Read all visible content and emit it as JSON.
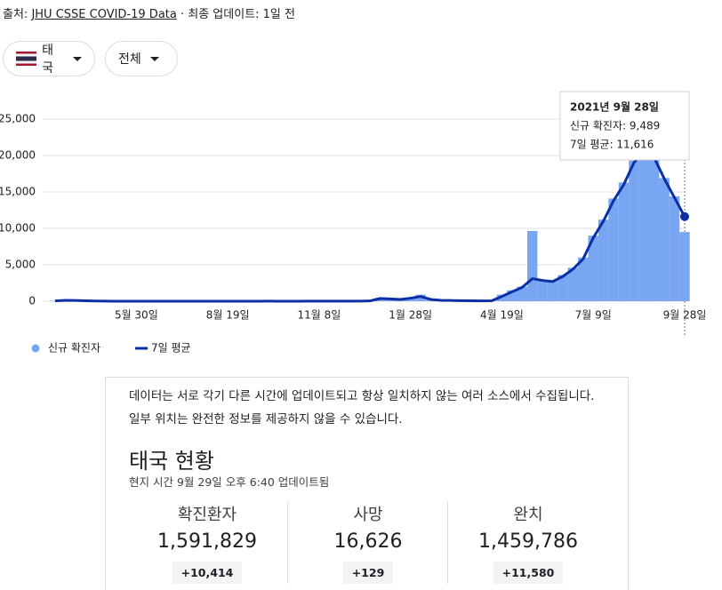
{
  "header": {
    "source_prefix": "출처: ",
    "source_link": "JHU CSSE COVID-19 Data",
    "updated": " · 최종 업데이트: 1일 전"
  },
  "filters": [
    "태국",
    "전체"
  ],
  "chart_data": {
    "type": "bar_line",
    "categories": [
      null,
      null,
      null,
      null,
      null,
      null,
      null,
      null,
      "5월 30일",
      null,
      null,
      null,
      null,
      null,
      null,
      null,
      null,
      "8월 19일",
      null,
      null,
      null,
      null,
      null,
      null,
      null,
      null,
      "11월 8일",
      null,
      null,
      null,
      null,
      null,
      null,
      null,
      null,
      "1월 28일",
      null,
      null,
      null,
      null,
      null,
      null,
      null,
      null,
      "4월 19일",
      null,
      null,
      null,
      null,
      null,
      null,
      null,
      null,
      "7월 9일",
      null,
      null,
      null,
      null,
      null,
      null,
      null,
      null,
      "9월 28일"
    ],
    "series": [
      {
        "name": "신규 확진자",
        "color": "#78a6f2",
        "mark": "bar",
        "values": [
          60,
          140,
          120,
          60,
          20,
          10,
          5,
          5,
          5,
          5,
          5,
          5,
          5,
          5,
          5,
          5,
          5,
          5,
          5,
          5,
          5,
          10,
          5,
          5,
          5,
          10,
          10,
          10,
          10,
          20,
          20,
          60,
          450,
          300,
          250,
          500,
          900,
          200,
          100,
          100,
          80,
          60,
          50,
          60,
          900,
          1500,
          2000,
          9635,
          2900,
          2800,
          3600,
          4600,
          6000,
          9000,
          11200,
          14100,
          16300,
          19300,
          20900,
          19800,
          16900,
          14400,
          9489
        ]
      },
      {
        "name": "7일 평균",
        "color": "#0b2fa5",
        "mark": "line",
        "values": [
          50,
          120,
          110,
          60,
          25,
          10,
          6,
          5,
          5,
          5,
          5,
          5,
          5,
          5,
          5,
          5,
          5,
          5,
          5,
          5,
          5,
          8,
          6,
          5,
          5,
          8,
          9,
          10,
          10,
          15,
          18,
          40,
          380,
          320,
          240,
          420,
          650,
          250,
          120,
          100,
          80,
          60,
          50,
          60,
          650,
          1300,
          1900,
          3100,
          2850,
          2700,
          3400,
          4400,
          5800,
          8700,
          11000,
          13800,
          16000,
          19000,
          20600,
          19700,
          16800,
          14200,
          11616
        ]
      }
    ],
    "ylim": [
      0,
      25000
    ],
    "yticks": [
      0,
      {
        "value": 5000,
        "label": "5,000"
      },
      {
        "value": 10000,
        "label": "10,000"
      },
      {
        "value": 15000,
        "label": "15,000"
      },
      {
        "value": 20000,
        "label": "20,000"
      },
      {
        "value": 25000,
        "label": "25,000"
      }
    ],
    "grid": true,
    "tooltip": {
      "date": "2021년 9월 28일",
      "lines": [
        "신규 확진자: 9,489",
        "7일 평균: 11,616"
      ]
    }
  },
  "panel": {
    "note": "데이터는 서로 각기 다른 시간에 업데이트되고 항상 일치하지 않는 여러 소스에서 수집됩니다. 일부 위치는 완전한 정보를 제공하지 않을 수 있습니다.",
    "title": "태국 현황",
    "subtitle": "현지 시간 9월 29일 오후 6:40 업데이트됨",
    "stats": [
      {
        "label": "확진환자",
        "value": "1,591,829",
        "delta": "+10,414"
      },
      {
        "label": "사망",
        "value": "16,626",
        "delta": "+129"
      },
      {
        "label": "완치",
        "value": "1,459,786",
        "delta": "+11,580"
      }
    ]
  }
}
